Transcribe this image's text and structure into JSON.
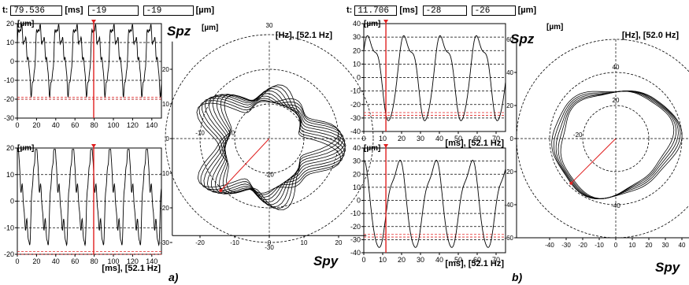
{
  "panels": [
    {
      "id": "a",
      "caption": "a)",
      "header": {
        "t_label": "t:",
        "t_value": "79.536",
        "t_unit": "[ms]",
        "v1": "-19",
        "v2": "-19",
        "v_unit": "[µm]"
      },
      "top_chart": {
        "unit_label": "[µm]",
        "axis_title": "Spz",
        "y_ticks": [
          "20",
          "10",
          "0",
          "-10",
          "-20",
          "-30"
        ],
        "x_ticks": [
          "0",
          "20",
          "40",
          "60",
          "80",
          "100",
          "120",
          "140"
        ]
      },
      "bottom_chart": {
        "unit_label": "[µm]",
        "x_label": "[ms], [52.1 Hz]",
        "y_ticks": [
          "20",
          "10",
          "0",
          "-10",
          "-20"
        ],
        "x_ticks": [
          "0",
          "20",
          "40",
          "60",
          "80",
          "100",
          "120",
          "140"
        ]
      },
      "polar": {
        "unit_label": "[µm]",
        "freq_label": "[Hz], [52.1 Hz]",
        "axis_title": "Spy",
        "ring_labels": [
          "30",
          "10",
          "-10",
          "-20",
          "-30"
        ],
        "y_ticks": [
          "20",
          "10",
          "0",
          "-10",
          "-20",
          "-30"
        ],
        "x_ticks": [
          "-20",
          "-10",
          "0",
          "10",
          "20"
        ]
      }
    },
    {
      "id": "b",
      "caption": "b)",
      "header": {
        "t_label": "t:",
        "t_value": "11.706",
        "t_unit": "[ms]",
        "v1": "-28",
        "v2": "-26",
        "v_unit": "[µm]"
      },
      "top_chart": {
        "unit_label": "[µm]",
        "axis_title": "Spz",
        "x_label": "[ms], [52.1 Hz]",
        "y_ticks": [
          "40",
          "30",
          "20",
          "10",
          "0",
          "-10",
          "-20",
          "-30",
          "-40"
        ],
        "x_ticks": [
          "0",
          "10",
          "20",
          "30",
          "40",
          "50",
          "60",
          "70"
        ]
      },
      "bottom_chart": {
        "unit_label": "[µm]",
        "x_label": "[ms], [52.1 Hz]",
        "y_ticks": [
          "40",
          "30",
          "20",
          "10",
          "0",
          "-10",
          "-20",
          "-30",
          "-40"
        ],
        "x_ticks": [
          "0",
          "10",
          "20",
          "30",
          "40",
          "50",
          "60",
          "70"
        ]
      },
      "polar": {
        "unit_label": "[µm]",
        "freq_label": "[Hz], [52.0 Hz]",
        "axis_title": "Spy",
        "ring_labels": [
          "40",
          "20",
          "-20",
          "-40"
        ],
        "y_ticks": [
          "60",
          "40",
          "20",
          "0",
          "-20",
          "-40",
          "-60"
        ],
        "x_ticks": [
          "-40",
          "-30",
          "-20",
          "-10",
          "0",
          "10",
          "20",
          "30",
          "40"
        ]
      }
    }
  ],
  "colors": {
    "trace": "#000000",
    "cursor": "#e02020",
    "grid": "#000000"
  }
}
